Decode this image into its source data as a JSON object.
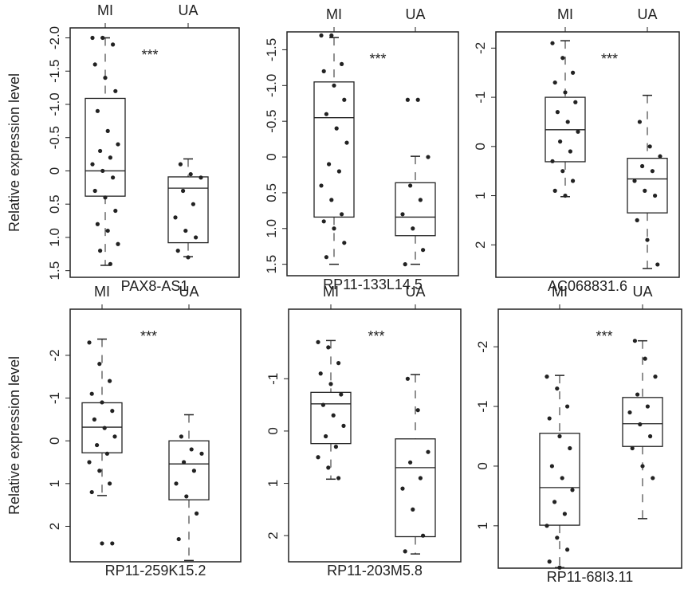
{
  "chart_data": [
    {
      "type": "box",
      "xlabel": "PAX8-AS1",
      "ylabel": "Relative expression level",
      "annotation": "***",
      "categories": [
        "MI",
        "UA"
      ],
      "y_reversed": true,
      "ylim": [
        -2.15,
        1.6
      ],
      "yticks": [
        {
          "value": -2,
          "label": "-2.0"
        },
        -1.5,
        {
          "value": -1,
          "label": "-1.0"
        },
        -0.5,
        0,
        0.5,
        {
          "value": 1,
          "label": "1.0"
        },
        1.5
      ],
      "boxes": [
        {
          "low": -2.0,
          "q1": -1.09,
          "median": 0.0,
          "q3": 0.38,
          "high": 1.42,
          "points": [
            -2.0,
            -2.0,
            -1.9,
            -1.6,
            -1.4,
            -1.2,
            -0.9,
            -0.6,
            -0.4,
            -0.3,
            -0.2,
            -0.1,
            0.0,
            0.1,
            0.3,
            0.4,
            0.6,
            0.8,
            0.9,
            1.1,
            1.2,
            1.4
          ]
        },
        {
          "low": -0.18,
          "q1": 0.09,
          "median": 0.26,
          "q3": 1.08,
          "high": 1.29,
          "points": [
            -0.1,
            0.05,
            0.1,
            0.3,
            0.5,
            0.7,
            0.9,
            1.0,
            1.2,
            1.3
          ]
        }
      ]
    },
    {
      "type": "box",
      "xlabel": "RP11-133L14.5",
      "annotation": "***",
      "categories": [
        "MI",
        "UA"
      ],
      "y_reversed": true,
      "ylim": [
        -1.75,
        1.66
      ],
      "yticks": [
        -1.5,
        {
          "value": -1,
          "label": "-1.0"
        },
        -0.5,
        0,
        0.5,
        {
          "value": 1,
          "label": "1.0"
        },
        1.5
      ],
      "boxes": [
        {
          "low": -1.67,
          "q1": -1.05,
          "median": -0.55,
          "q3": 0.84,
          "high": 1.5,
          "points": [
            -1.7,
            -1.7,
            -1.3,
            -1.2,
            -1.0,
            -0.8,
            -0.6,
            -0.4,
            -0.2,
            0.1,
            0.2,
            0.4,
            0.6,
            0.8,
            0.9,
            1.0,
            1.2,
            1.4
          ]
        },
        {
          "low": -0.01,
          "q1": 0.36,
          "median": 0.84,
          "q3": 1.1,
          "high": 1.5,
          "points": [
            -0.8,
            -0.8,
            0.0,
            0.4,
            0.6,
            0.8,
            1.0,
            1.3,
            1.5
          ]
        }
      ]
    },
    {
      "type": "box",
      "xlabel": "AC068831.6",
      "annotation": "***",
      "categories": [
        "MI",
        "UA"
      ],
      "y_reversed": true,
      "ylim": [
        -2.33,
        2.66
      ],
      "yticks": [
        -2,
        -1,
        0,
        1,
        2
      ],
      "boxes": [
        {
          "low": -2.15,
          "q1": -1.0,
          "median": -0.34,
          "q3": 0.31,
          "high": 1.02,
          "points": [
            -2.1,
            -1.8,
            -1.5,
            -1.3,
            -1.1,
            -0.9,
            -0.7,
            -0.5,
            -0.3,
            -0.1,
            0.1,
            0.3,
            0.5,
            0.7,
            0.9,
            1.0
          ]
        },
        {
          "low": -1.04,
          "q1": 0.24,
          "median": 0.66,
          "q3": 1.35,
          "high": 2.48,
          "points": [
            -0.5,
            0.0,
            0.2,
            0.4,
            0.5,
            0.7,
            0.9,
            1.0,
            1.5,
            1.9,
            2.4
          ]
        }
      ]
    },
    {
      "type": "box",
      "xlabel": "RP11-259K15.2",
      "ylabel": "Relative expression level",
      "annotation": "***",
      "categories": [
        "MI",
        "UA"
      ],
      "y_reversed": true,
      "ylim": [
        -3.08,
        2.83
      ],
      "yticks": [
        -2,
        -1,
        0,
        1,
        2
      ],
      "boxes": [
        {
          "low": -2.38,
          "q1": -0.89,
          "median": -0.32,
          "q3": 0.28,
          "high": 1.28,
          "points": [
            -2.3,
            -1.8,
            -1.4,
            -1.1,
            -0.9,
            -0.7,
            -0.5,
            -0.3,
            -0.1,
            0.1,
            0.3,
            0.5,
            0.7,
            1.0,
            1.2,
            2.4,
            2.4
          ]
        },
        {
          "low": -0.61,
          "q1": 0.0,
          "median": 0.54,
          "q3": 1.38,
          "high": 2.8,
          "points": [
            -0.1,
            0.2,
            0.3,
            0.5,
            0.7,
            1.0,
            1.3,
            1.7,
            2.3
          ]
        }
      ]
    },
    {
      "type": "box",
      "xlabel": "RP11-203M5.8",
      "annotation": "***",
      "categories": [
        "MI",
        "UA"
      ],
      "y_reversed": true,
      "ylim": [
        -2.33,
        2.5
      ],
      "yticks": [
        -1,
        0,
        1,
        2
      ],
      "boxes": [
        {
          "low": -1.73,
          "q1": -0.74,
          "median": -0.52,
          "q3": 0.24,
          "high": 0.92,
          "points": [
            -1.7,
            -1.6,
            -1.3,
            -1.1,
            -0.9,
            -0.7,
            -0.5,
            -0.3,
            -0.1,
            0.1,
            0.3,
            0.5,
            0.7,
            0.9
          ]
        },
        {
          "low": -1.08,
          "q1": 0.15,
          "median": 0.7,
          "q3": 2.02,
          "high": 2.35,
          "points": [
            -1.0,
            -0.4,
            0.4,
            0.6,
            0.9,
            1.1,
            1.5,
            2.0,
            2.3
          ]
        }
      ]
    },
    {
      "type": "box",
      "xlabel": "RP11-68I3.11",
      "annotation": "***",
      "categories": [
        "MI",
        "UA"
      ],
      "y_reversed": true,
      "ylim": [
        -2.63,
        1.71
      ],
      "yticks": [
        -2,
        -1,
        0,
        1
      ],
      "boxes": [
        {
          "low": -1.52,
          "q1": -0.55,
          "median": 0.36,
          "q3": 0.99,
          "high": 1.7,
          "points": [
            -1.5,
            -1.3,
            -1.0,
            -0.8,
            -0.5,
            -0.3,
            0.0,
            0.2,
            0.4,
            0.6,
            0.8,
            1.0,
            1.2,
            1.4,
            1.6,
            1.7
          ]
        },
        {
          "low": -2.1,
          "q1": -1.15,
          "median": -0.71,
          "q3": -0.33,
          "high": 0.88,
          "points": [
            -2.1,
            -1.8,
            -1.5,
            -1.2,
            -1.0,
            -0.9,
            -0.7,
            -0.5,
            -0.3,
            0.0,
            0.2
          ]
        }
      ]
    }
  ]
}
